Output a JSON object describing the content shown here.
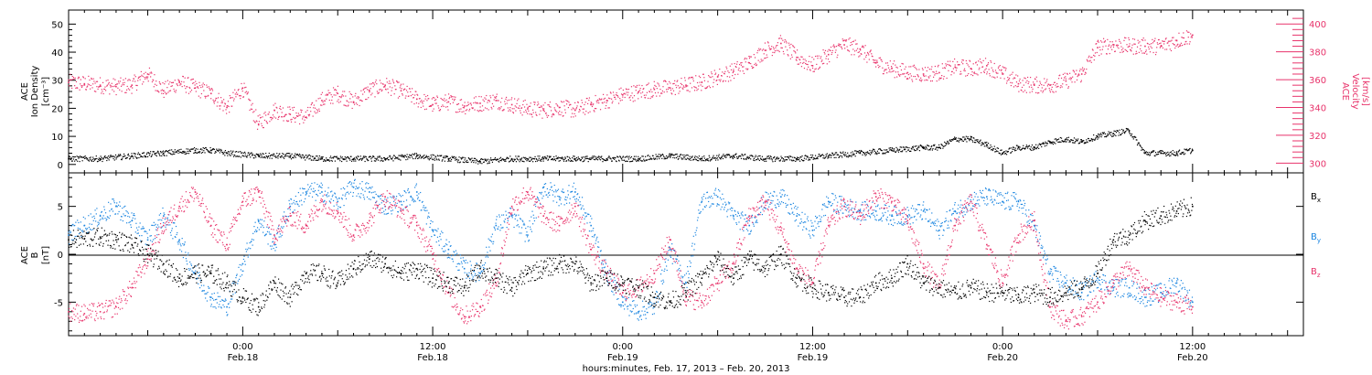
{
  "colors": {
    "density": "#000000",
    "velocity": "#e8336b",
    "bx": "#000000",
    "by": "#1a85e0",
    "bz": "#e8336b"
  },
  "xlabel": "hours:minutes, Feb. 17, 2013 – Feb. 20, 2013",
  "x_ticks": [
    {
      "time": "0:00",
      "date": "Feb.18"
    },
    {
      "time": "12:00",
      "date": "Feb.18"
    },
    {
      "time": "0:00",
      "date": "Feb.19"
    },
    {
      "time": "12:00",
      "date": "Feb.19"
    },
    {
      "time": "0:00",
      "date": "Feb.20"
    },
    {
      "time": "12:00",
      "date": "Feb.20"
    }
  ],
  "panel1": {
    "ylabel_left": [
      "ACE",
      "Ion Density",
      "[cm⁻³]"
    ],
    "ylabel_right": [
      "ACE",
      "Velocity",
      "[km/s]"
    ]
  },
  "panel2": {
    "ylabel_left": [
      "ACE",
      "B",
      "[nT]"
    ],
    "legend": [
      {
        "label": "B",
        "sub": "x",
        "color": "#000000"
      },
      {
        "label": "B",
        "sub": "y",
        "color": "#1a85e0"
      },
      {
        "label": "B",
        "sub": "z",
        "color": "#e8336b"
      }
    ]
  },
  "chart_data": [
    {
      "type": "scatter",
      "title": "",
      "x_unit": "hours since Feb. 17, 2013 0:00",
      "xlim": [
        13.0,
        91.0
      ],
      "y_axes": {
        "left": {
          "label": "ACE Ion Density [cm⁻³]",
          "ylim": [
            -3,
            55
          ],
          "ticks": [
            0,
            10,
            20,
            30,
            40,
            50
          ]
        },
        "right": {
          "label": "ACE Velocity [km/s]",
          "ylim": [
            293,
            410
          ],
          "ticks": [
            300,
            320,
            340,
            360,
            380,
            400
          ]
        }
      },
      "series": [
        {
          "name": "Ion Density",
          "axis": "left",
          "x": [
            13,
            15,
            17,
            19,
            21,
            22,
            23,
            25,
            27,
            29,
            31,
            33,
            35,
            37,
            39,
            41,
            43,
            45,
            47,
            49,
            51,
            53,
            55,
            57,
            59,
            61,
            63,
            65,
            67,
            68,
            69,
            70,
            71,
            72,
            73,
            74,
            75,
            76,
            77,
            78,
            79,
            80,
            81,
            82,
            83,
            84
          ],
          "y": [
            2,
            2,
            3,
            4,
            5,
            5,
            4,
            3,
            3,
            2,
            2,
            2,
            3,
            2,
            1,
            2,
            2,
            2,
            2,
            2,
            3,
            2,
            3,
            2,
            2,
            3,
            4,
            5,
            6,
            6,
            9,
            9,
            7,
            4,
            6,
            6,
            8,
            9,
            8,
            10,
            11,
            12,
            4,
            4,
            4,
            5
          ]
        },
        {
          "name": "Velocity",
          "axis": "right",
          "x": [
            13,
            14,
            15,
            16,
            17,
            18,
            19,
            20,
            21,
            22,
            23,
            24,
            25,
            26,
            27,
            28,
            29,
            30,
            31,
            32,
            33,
            34,
            35,
            36,
            37,
            38,
            39,
            40,
            41,
            42,
            43,
            44,
            45,
            46,
            47,
            48,
            49,
            50,
            51,
            52,
            53,
            54,
            55,
            56,
            57,
            58,
            59,
            60,
            61,
            62,
            63,
            64,
            65,
            66,
            67,
            68,
            69,
            70,
            71,
            72,
            73,
            74,
            75,
            76,
            77,
            78,
            79,
            80,
            81,
            82,
            83,
            84
          ],
          "y": [
            358,
            357,
            356,
            355,
            356,
            364,
            352,
            358,
            354,
            350,
            340,
            354,
            328,
            338,
            335,
            333,
            345,
            350,
            344,
            352,
            356,
            352,
            346,
            342,
            344,
            341,
            343,
            345,
            342,
            339,
            338,
            340,
            338,
            342,
            345,
            349,
            351,
            353,
            354,
            356,
            358,
            362,
            366,
            372,
            381,
            386,
            376,
            370,
            378,
            385,
            382,
            372,
            368,
            365,
            364,
            365,
            369,
            368,
            370,
            364,
            357,
            356,
            356,
            359,
            364,
            383,
            385,
            384,
            384,
            384,
            388,
            392
          ]
        }
      ]
    },
    {
      "type": "scatter",
      "title": "",
      "x_unit": "hours since Feb. 17, 2013 0:00",
      "xlim": [
        13.0,
        91.0
      ],
      "ylabel": "ACE B [nT]",
      "ylim": [
        -8.5,
        8.5
      ],
      "y_ticks": [
        -5,
        0,
        5
      ],
      "zero_line": true,
      "series": [
        {
          "name": "Bx",
          "x": [
            13,
            14,
            15,
            16,
            17,
            18,
            19,
            20,
            21,
            22,
            23,
            24,
            25,
            26,
            27,
            28,
            29,
            30,
            31,
            32,
            33,
            34,
            35,
            36,
            37,
            38,
            39,
            40,
            41,
            42,
            43,
            44,
            45,
            46,
            47,
            48,
            49,
            50,
            51,
            52,
            53,
            54,
            55,
            56,
            57,
            58,
            59,
            60,
            61,
            62,
            63,
            64,
            65,
            66,
            67,
            68,
            69,
            70,
            71,
            72,
            73,
            74,
            75,
            76,
            77,
            78,
            79,
            80,
            81,
            82,
            83,
            84
          ],
          "y": [
            1.5,
            1.6,
            1.8,
            1.5,
            1.0,
            0.0,
            -1.0,
            -2.5,
            -2.0,
            -2.0,
            -3.0,
            -4.5,
            -5.5,
            -3.0,
            -4.5,
            -2.0,
            -2.0,
            -3.0,
            -1.5,
            -0.5,
            -1.0,
            -2.0,
            -1.5,
            -2.5,
            -3.0,
            -3.5,
            -1.5,
            -2.5,
            -3.5,
            -2.0,
            -1.5,
            -1.0,
            -1.0,
            -3.0,
            -2.5,
            -3.0,
            -3.5,
            -4.5,
            -5.0,
            -4.0,
            -2.5,
            -0.5,
            -2.5,
            -0.5,
            -1.5,
            0.0,
            -2.5,
            -3.5,
            -4.0,
            -4.5,
            -4.5,
            -3.0,
            -2.5,
            -1.0,
            -3.0,
            -3.5,
            -4.0,
            -3.5,
            -4.0,
            -4.0,
            -4.5,
            -4.0,
            -4.5,
            -4.0,
            -3.5,
            -2.0,
            1.5,
            2.0,
            3.5,
            4.0,
            4.5,
            5.0
          ]
        },
        {
          "name": "By",
          "x": [
            13,
            14,
            15,
            16,
            17,
            18,
            19,
            20,
            21,
            22,
            23,
            24,
            25,
            26,
            27,
            28,
            29,
            30,
            31,
            32,
            33,
            34,
            35,
            36,
            37,
            38,
            39,
            40,
            41,
            42,
            43,
            44,
            45,
            46,
            47,
            48,
            49,
            50,
            51,
            52,
            53,
            54,
            55,
            56,
            57,
            58,
            59,
            60,
            61,
            62,
            63,
            64,
            65,
            66,
            67,
            68,
            69,
            70,
            71,
            72,
            73,
            74,
            75,
            76,
            77,
            78,
            79,
            80,
            81,
            82,
            83,
            84
          ],
          "y": [
            2.0,
            3.0,
            4.0,
            5.0,
            3.5,
            1.5,
            4.0,
            1.5,
            -2.0,
            -4.5,
            -5.5,
            -1.0,
            3.5,
            1.0,
            5.0,
            6.5,
            6.5,
            5.5,
            7.0,
            6.5,
            5.0,
            5.5,
            6.5,
            2.5,
            0.5,
            -1.5,
            -2.0,
            3.0,
            4.0,
            2.0,
            7.0,
            6.0,
            6.5,
            3.0,
            -2.0,
            -5.0,
            -6.0,
            -5.5,
            0.5,
            -3.0,
            5.5,
            6.0,
            4.0,
            3.0,
            5.5,
            6.0,
            4.0,
            2.5,
            5.5,
            5.0,
            4.5,
            4.5,
            4.0,
            4.0,
            4.5,
            2.5,
            4.5,
            5.5,
            6.0,
            5.5,
            5.5,
            3.0,
            -2.0,
            -3.0,
            -4.0,
            -2.5,
            -3.5,
            -3.5,
            -4.5,
            -4.0,
            -3.0,
            -5.0
          ]
        },
        {
          "name": "Bz",
          "x": [
            13,
            14,
            15,
            16,
            17,
            18,
            19,
            20,
            21,
            22,
            23,
            24,
            25,
            26,
            27,
            28,
            29,
            30,
            31,
            32,
            33,
            34,
            35,
            36,
            37,
            38,
            39,
            40,
            41,
            42,
            43,
            44,
            45,
            46,
            47,
            48,
            49,
            50,
            51,
            52,
            53,
            54,
            55,
            56,
            57,
            58,
            59,
            60,
            61,
            62,
            63,
            64,
            65,
            66,
            67,
            68,
            69,
            70,
            71,
            72,
            73,
            74,
            75,
            76,
            77,
            78,
            79,
            80,
            81,
            82,
            83,
            84
          ],
          "y": [
            -6.0,
            -6.2,
            -6.0,
            -5.5,
            -3.5,
            -0.5,
            3.0,
            5.0,
            6.5,
            3.0,
            1.0,
            5.5,
            6.5,
            2.0,
            4.0,
            3.0,
            5.5,
            4.5,
            2.0,
            3.5,
            6.0,
            4.5,
            3.0,
            0.0,
            -4.0,
            -6.5,
            -5.5,
            -3.0,
            5.0,
            6.5,
            4.0,
            3.0,
            5.0,
            0.5,
            -2.0,
            -4.0,
            -3.5,
            -2.0,
            1.5,
            -4.5,
            -5.0,
            -3.0,
            -1.0,
            4.0,
            5.5,
            2.5,
            -1.5,
            -3.0,
            3.0,
            5.0,
            4.0,
            6.0,
            5.5,
            3.5,
            -1.0,
            -3.5,
            3.0,
            5.5,
            1.0,
            -3.0,
            2.0,
            3.5,
            -5.5,
            -7.0,
            -6.5,
            -5.0,
            -3.0,
            -1.5,
            -3.5,
            -4.5,
            -5.0,
            -5.5
          ]
        }
      ]
    }
  ]
}
